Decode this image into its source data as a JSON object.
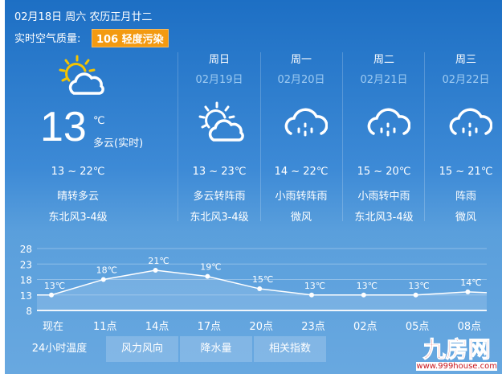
{
  "header": {
    "date": "02月18日 周六 农历正月廿二",
    "aq_label": "实时空气质量:",
    "aq_value": "106 轻度污染",
    "aq_color": "#f39a11"
  },
  "current": {
    "icon": "partly-cloudy-icon",
    "temp": "13",
    "unit": "℃",
    "condition": "多云(实时)",
    "range": "13 ~ 22℃",
    "weather": "晴转多云",
    "wind": "东北风3-4级"
  },
  "forecast": [
    {
      "day": "周日",
      "date": "02月19日",
      "icon": "partly-cloudy-icon",
      "range": "13 ~ 23℃",
      "weather": "多云转阵雨",
      "wind": "东北风3-4级"
    },
    {
      "day": "周一",
      "date": "02月20日",
      "icon": "rain-cloud-icon",
      "range": "14 ~ 22℃",
      "weather": "小雨转阵雨",
      "wind": "微风"
    },
    {
      "day": "周二",
      "date": "02月21日",
      "icon": "rain-cloud-icon",
      "range": "15 ~ 20℃",
      "weather": "小雨转中雨",
      "wind": "东北风3-4级"
    },
    {
      "day": "周三",
      "date": "02月22日",
      "icon": "rain-cloud-icon",
      "range": "15 ~ 21℃",
      "weather": "阵雨",
      "wind": "微风"
    }
  ],
  "chart_data": {
    "type": "area",
    "categories": [
      "现在",
      "11点",
      "14点",
      "17点",
      "20点",
      "23点",
      "02点",
      "05点",
      "08点"
    ],
    "values": [
      13,
      18,
      21,
      19,
      15,
      13,
      13,
      13,
      14
    ],
    "labels": [
      "13℃",
      "18℃",
      "21℃",
      "19℃",
      "15℃",
      "13℃",
      "13℃",
      "13℃",
      "14℃"
    ],
    "yticks": [
      "28",
      "23",
      "18",
      "13",
      "8"
    ],
    "ylim": [
      8,
      28
    ],
    "grid": true
  },
  "tabs": [
    "24小时温度",
    "风力风向",
    "降水量",
    "相关指数"
  ],
  "watermark": {
    "text": "九房网",
    "url": "www.999house.com"
  }
}
